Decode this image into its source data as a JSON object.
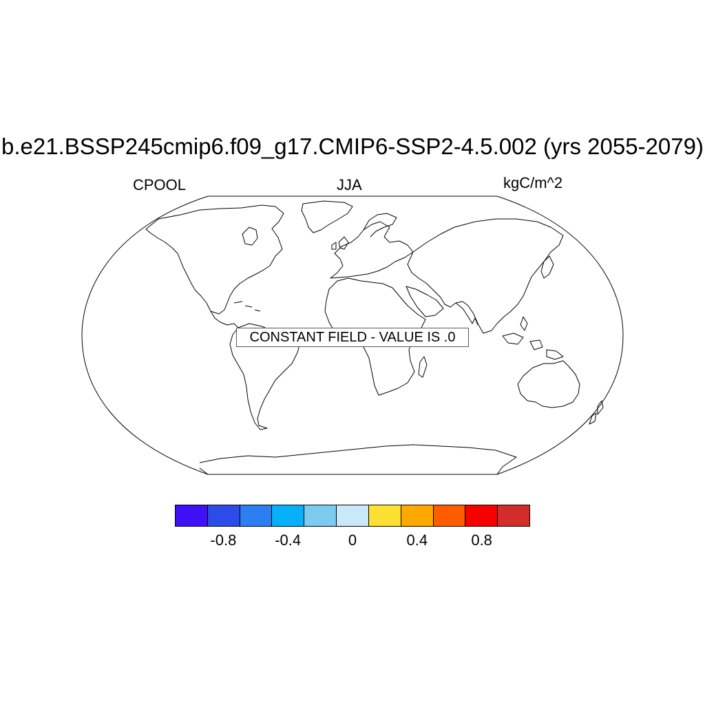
{
  "title": "b.e21.BSSP245cmip6.f09_g17.CMIP6-SSP2-4.5.002 (yrs 2055-2079)",
  "subtitle_left": "CPOOL",
  "subtitle_center": "JJA",
  "subtitle_right": "kgC/m^2",
  "notice": "CONSTANT FIELD - VALUE IS .0",
  "colorbar": {
    "colors": [
      "#3f0ff5",
      "#2b4ce8",
      "#2c7ff0",
      "#06b0fa",
      "#7ccbef",
      "#c9e8f8",
      "#fde033",
      "#ffa800",
      "#ff5c00",
      "#f70000",
      "#d42b2b"
    ],
    "labels": [
      "-0.8",
      "-0.4",
      "0",
      "0.4",
      "0.8"
    ]
  }
}
